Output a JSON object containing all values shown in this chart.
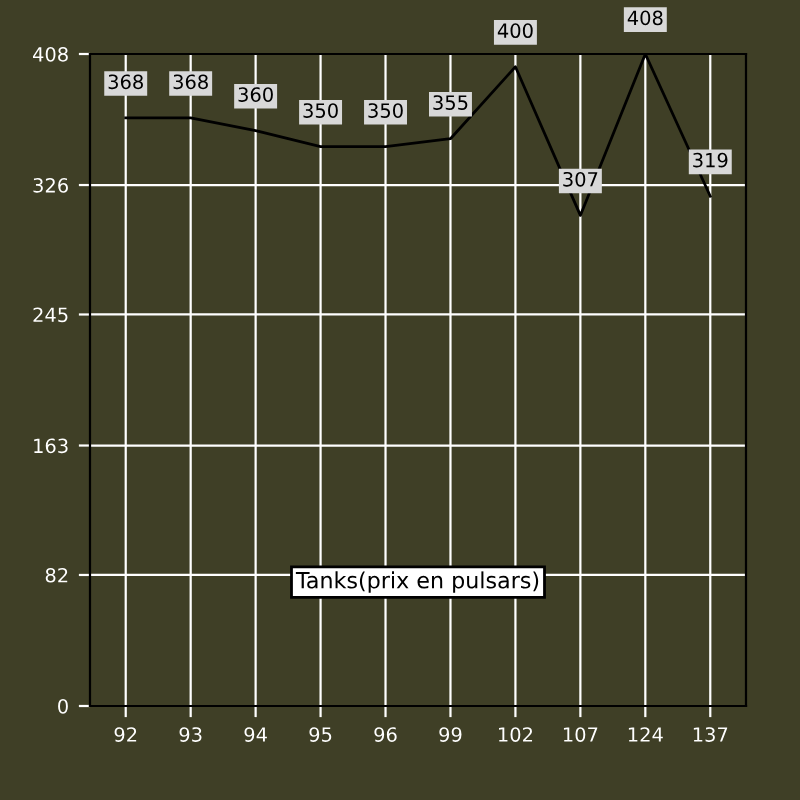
{
  "chart_data": {
    "type": "line",
    "title": "Tanks(prix en pulsars)",
    "categories": [
      "92",
      "93",
      "94",
      "95",
      "96",
      "99",
      "102",
      "107",
      "124",
      "137"
    ],
    "series": [
      {
        "color": "#000000",
        "values": [
          368,
          368,
          360,
          350,
          350,
          355,
          400,
          307,
          408,
          319
        ]
      }
    ],
    "ylim": [
      0,
      408
    ],
    "yticks": [
      0,
      82,
      163,
      245,
      326,
      408
    ],
    "grid": true,
    "data_labels": true,
    "marker": "none",
    "line_style": "solid"
  }
}
